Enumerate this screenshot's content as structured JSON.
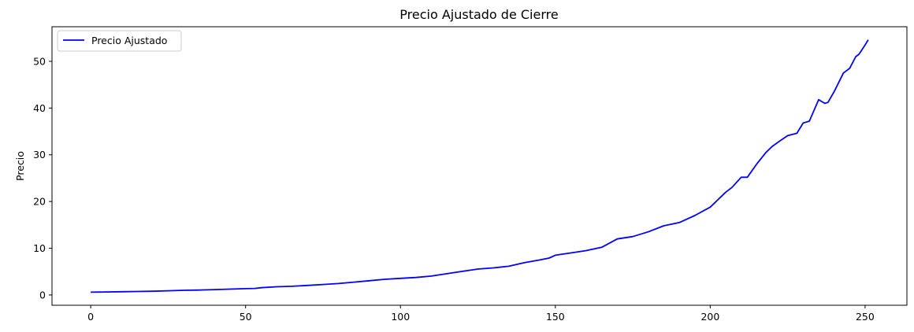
{
  "chart_data": {
    "type": "line",
    "title": "Precio Ajustado de Cierre",
    "xlabel": "",
    "ylabel": "Precio",
    "xlim": [
      -12.5,
      263.5
    ],
    "ylim": [
      -2.2,
      57.4
    ],
    "xticks": [
      0,
      50,
      100,
      150,
      200,
      250
    ],
    "yticks": [
      0,
      10,
      20,
      30,
      40,
      50
    ],
    "grid": false,
    "legend_position": "upper-left",
    "series": [
      {
        "name": "Precio Ajustado",
        "color": "#0000ff",
        "x": [
          0,
          5,
          10,
          15,
          20,
          25,
          30,
          35,
          40,
          45,
          50,
          53,
          55,
          60,
          65,
          70,
          75,
          80,
          85,
          90,
          95,
          100,
          105,
          110,
          115,
          120,
          125,
          130,
          135,
          140,
          145,
          148,
          150,
          155,
          160,
          165,
          170,
          175,
          180,
          185,
          190,
          195,
          200,
          205,
          207,
          210,
          212,
          215,
          218,
          220,
          223,
          225,
          228,
          230,
          232,
          235,
          237,
          238,
          240,
          243,
          245,
          247,
          248,
          250,
          251
        ],
        "values": [
          0.6,
          0.65,
          0.7,
          0.75,
          0.8,
          0.9,
          1.0,
          1.05,
          1.15,
          1.25,
          1.35,
          1.4,
          1.55,
          1.75,
          1.85,
          2.05,
          2.25,
          2.45,
          2.75,
          3.05,
          3.35,
          3.55,
          3.75,
          4.05,
          4.55,
          5.05,
          5.55,
          5.8,
          6.15,
          6.9,
          7.5,
          7.9,
          8.5,
          9.0,
          9.5,
          10.2,
          12.0,
          12.5,
          13.5,
          14.8,
          15.5,
          17.0,
          18.8,
          22.0,
          23.0,
          25.2,
          25.2,
          28.0,
          30.5,
          31.8,
          33.2,
          34.1,
          34.6,
          36.8,
          37.2,
          41.8,
          41.0,
          41.2,
          43.5,
          47.5,
          48.5,
          51.0,
          51.5,
          53.5,
          54.6
        ]
      }
    ]
  }
}
